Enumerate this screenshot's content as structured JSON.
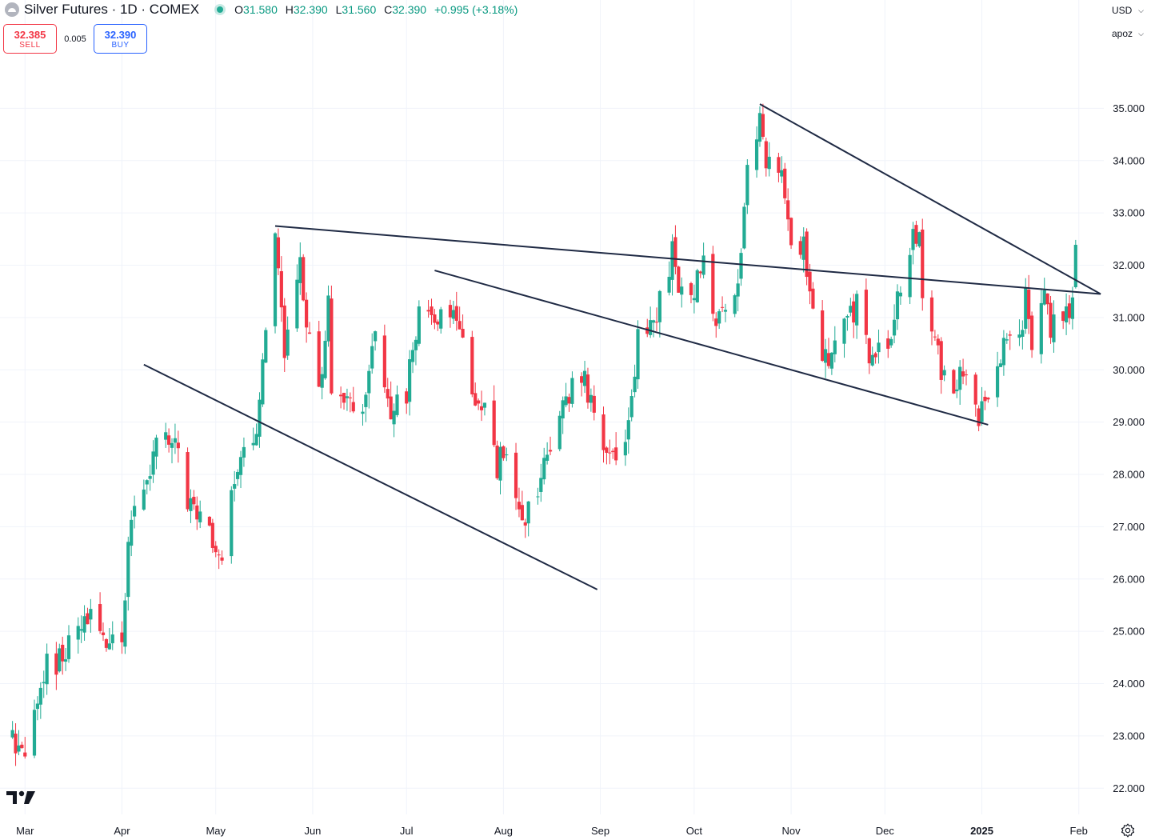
{
  "header": {
    "symbol_title": "Silver Futures · 1D · COMEX",
    "ohlc": {
      "open_label": "O",
      "open": "31.580",
      "high_label": "H",
      "high": "32.390",
      "low_label": "L",
      "low": "31.560",
      "close_label": "C",
      "close": "32.390",
      "change": "+0.995 (+3.18%)"
    }
  },
  "trade": {
    "sell_price": "32.385",
    "sell_label": "SELL",
    "spread": "0.005",
    "buy_price": "32.390",
    "buy_label": "BUY"
  },
  "axis_controls": {
    "currency": "USD",
    "unit": "apoz"
  },
  "icons": {
    "logo": "tradingview-logo-icon",
    "settings": "gear-icon",
    "chevron": "chevron-down-icon",
    "symbol": "silver-symbol-icon",
    "live": "live-status-dot-icon"
  },
  "colors": {
    "up": "#22ab94",
    "down": "#f23645",
    "trendline": "#1f2a44",
    "grid": "#f0f3fa"
  },
  "chart_data": {
    "type": "candlestick",
    "x_tick_labels": [
      "Mar",
      "Apr",
      "May",
      "Jun",
      "Jul",
      "Aug",
      "Sep",
      "Oct",
      "Nov",
      "Dec",
      "2025",
      "Feb"
    ],
    "x_ticks": [
      "2024-03-01",
      "2024-04-01",
      "2024-05-01",
      "2024-06-01",
      "2024-07-01",
      "2024-08-01",
      "2024-09-01",
      "2024-10-01",
      "2024-11-01",
      "2024-12-01",
      "2025-01-01",
      "2025-02-01"
    ],
    "y_tick_labels": [
      "22.000",
      "23.000",
      "24.000",
      "25.000",
      "26.000",
      "27.000",
      "28.000",
      "29.000",
      "30.000",
      "31.000",
      "32.000",
      "33.000",
      "34.000",
      "35.000"
    ],
    "ylim": [
      21.5,
      36.0
    ],
    "xlim": [
      "2024-02-22",
      "2025-02-09"
    ],
    "grid": true,
    "trendlines": [
      {
        "from": [
          "2024-04-08",
          30.1
        ],
        "to": [
          "2024-08-31",
          25.8
        ]
      },
      {
        "from": [
          "2024-05-20",
          32.75
        ],
        "to": [
          "2025-02-08",
          31.45
        ]
      },
      {
        "from": [
          "2024-10-22",
          35.08
        ],
        "to": [
          "2025-02-08",
          31.45
        ]
      },
      {
        "from": [
          "2024-07-10",
          31.9
        ],
        "to": [
          "2025-01-03",
          28.95
        ]
      }
    ],
    "anchors": [
      [
        "2024-02-26",
        23.0
      ],
      [
        "2024-03-01",
        22.7
      ],
      [
        "2024-03-05",
        23.8
      ],
      [
        "2024-03-08",
        24.3
      ],
      [
        "2024-03-13",
        24.5
      ],
      [
        "2024-03-18",
        25.0
      ],
      [
        "2024-03-21",
        25.3
      ],
      [
        "2024-03-25",
        24.9
      ],
      [
        "2024-03-28",
        24.8
      ],
      [
        "2024-04-01",
        25.0
      ],
      [
        "2024-04-03",
        26.5
      ],
      [
        "2024-04-05",
        27.4
      ],
      [
        "2024-04-09",
        28.0
      ],
      [
        "2024-04-12",
        28.5
      ],
      [
        "2024-04-15",
        28.7
      ],
      [
        "2024-04-18",
        28.6
      ],
      [
        "2024-04-22",
        27.5
      ],
      [
        "2024-04-26",
        27.3
      ],
      [
        "2024-05-01",
        26.7
      ],
      [
        "2024-05-03",
        26.6
      ],
      [
        "2024-05-06",
        27.5
      ],
      [
        "2024-05-10",
        28.5
      ],
      [
        "2024-05-14",
        29.0
      ],
      [
        "2024-05-17",
        31.0
      ],
      [
        "2024-05-20",
        32.5
      ],
      [
        "2024-05-23",
        30.5
      ],
      [
        "2024-05-28",
        32.0
      ],
      [
        "2024-05-31",
        30.6
      ],
      [
        "2024-06-04",
        29.7
      ],
      [
        "2024-06-06",
        31.2
      ],
      [
        "2024-06-07",
        29.4
      ],
      [
        "2024-06-12",
        29.4
      ],
      [
        "2024-06-17",
        29.3
      ],
      [
        "2024-06-21",
        30.8
      ],
      [
        "2024-06-26",
        29.1
      ],
      [
        "2024-07-01",
        29.6
      ],
      [
        "2024-07-05",
        31.0
      ],
      [
        "2024-07-10",
        31.0
      ],
      [
        "2024-07-15",
        31.2
      ],
      [
        "2024-07-18",
        30.8
      ],
      [
        "2024-07-22",
        29.3
      ],
      [
        "2024-07-26",
        29.1
      ],
      [
        "2024-07-30",
        28.1
      ],
      [
        "2024-08-02",
        28.6
      ],
      [
        "2024-08-05",
        27.3
      ],
      [
        "2024-08-07",
        26.9
      ],
      [
        "2024-08-12",
        27.7
      ],
      [
        "2024-08-16",
        28.6
      ],
      [
        "2024-08-21",
        29.5
      ],
      [
        "2024-08-26",
        30.0
      ],
      [
        "2024-08-30",
        29.0
      ],
      [
        "2024-09-04",
        28.3
      ],
      [
        "2024-09-06",
        28.2
      ],
      [
        "2024-09-10",
        28.8
      ],
      [
        "2024-09-13",
        30.7
      ],
      [
        "2024-09-17",
        30.8
      ],
      [
        "2024-09-20",
        31.3
      ],
      [
        "2024-09-24",
        32.2
      ],
      [
        "2024-09-27",
        31.5
      ],
      [
        "2024-10-01",
        31.5
      ],
      [
        "2024-10-04",
        32.2
      ],
      [
        "2024-10-08",
        30.8
      ],
      [
        "2024-10-11",
        31.4
      ],
      [
        "2024-10-15",
        31.6
      ],
      [
        "2024-10-18",
        33.7
      ],
      [
        "2024-10-22",
        34.7
      ],
      [
        "2024-10-24",
        33.8
      ],
      [
        "2024-10-28",
        33.8
      ],
      [
        "2024-10-30",
        33.5
      ],
      [
        "2024-11-01",
        32.5
      ],
      [
        "2024-11-05",
        32.3
      ],
      [
        "2024-11-08",
        31.0
      ],
      [
        "2024-11-11",
        30.4
      ],
      [
        "2024-11-14",
        30.2
      ],
      [
        "2024-11-18",
        31.1
      ],
      [
        "2024-11-22",
        31.2
      ],
      [
        "2024-11-27",
        30.1
      ],
      [
        "2024-12-02",
        30.6
      ],
      [
        "2024-12-06",
        31.5
      ],
      [
        "2024-12-10",
        32.5
      ],
      [
        "2024-12-12",
        32.8
      ],
      [
        "2024-12-13",
        31.6
      ],
      [
        "2024-12-17",
        30.7
      ],
      [
        "2024-12-19",
        29.7
      ],
      [
        "2024-12-23",
        29.8
      ],
      [
        "2024-12-27",
        30.0
      ],
      [
        "2024-12-31",
        28.9
      ],
      [
        "2025-01-03",
        29.7
      ],
      [
        "2025-01-08",
        30.5
      ],
      [
        "2025-01-13",
        30.5
      ],
      [
        "2025-01-15",
        31.3
      ],
      [
        "2025-01-17",
        30.3
      ],
      [
        "2025-01-21",
        31.5
      ],
      [
        "2025-01-23",
        30.8
      ],
      [
        "2025-01-27",
        30.9
      ],
      [
        "2025-01-29",
        31.2
      ],
      [
        "2025-01-30",
        31.4
      ],
      [
        "2025-01-31",
        32.39
      ]
    ]
  }
}
